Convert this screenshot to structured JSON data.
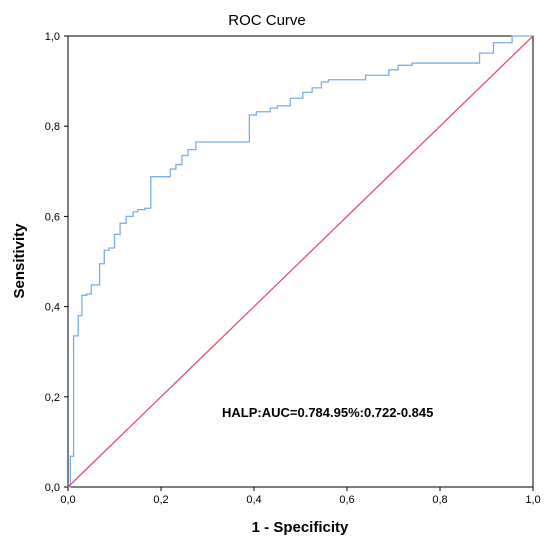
{
  "chart_data": {
    "type": "line",
    "title": "ROC Curve",
    "xlabel": "1 - Specificity",
    "ylabel": "Sensitivity",
    "xlim": [
      0,
      1
    ],
    "ylim": [
      0,
      1
    ],
    "xticks": [
      "0,0",
      "0,2",
      "0,4",
      "0,6",
      "0,8",
      "1,0"
    ],
    "yticks": [
      "0,0",
      "0,2",
      "0,4",
      "0,6",
      "0,8",
      "1,0"
    ],
    "grid": false,
    "legend": "none",
    "annotation": "HALP:AUC=0.784.95%:0.722-0.845",
    "series": [
      {
        "color": "#7aaee8",
        "x": [
          0,
          0.005,
          0.005,
          0.012,
          0.012,
          0.022,
          0.022,
          0.03,
          0.03,
          0.04,
          0.04,
          0.05,
          0.05,
          0.068,
          0.068,
          0.078,
          0.078,
          0.088,
          0.088,
          0.1,
          0.1,
          0.112,
          0.112,
          0.125,
          0.125,
          0.14,
          0.14,
          0.15,
          0.15,
          0.165,
          0.165,
          0.178,
          0.178,
          0.22,
          0.22,
          0.232,
          0.232,
          0.245,
          0.245,
          0.258,
          0.258,
          0.275,
          0.275,
          0.39,
          0.39,
          0.405,
          0.405,
          0.435,
          0.435,
          0.45,
          0.45,
          0.478,
          0.478,
          0.505,
          0.505,
          0.525,
          0.525,
          0.545,
          0.545,
          0.56,
          0.56,
          0.64,
          0.64,
          0.69,
          0.69,
          0.71,
          0.71,
          0.74,
          0.74,
          0.885,
          0.885,
          0.915,
          0.915,
          0.955,
          0.955,
          1.0
        ],
        "y": [
          0,
          0,
          0.068,
          0.068,
          0.335,
          0.335,
          0.38,
          0.38,
          0.425,
          0.425,
          0.428,
          0.428,
          0.448,
          0.448,
          0.495,
          0.495,
          0.525,
          0.525,
          0.53,
          0.53,
          0.56,
          0.56,
          0.585,
          0.585,
          0.6,
          0.6,
          0.61,
          0.61,
          0.615,
          0.615,
          0.618,
          0.618,
          0.688,
          0.688,
          0.705,
          0.705,
          0.715,
          0.715,
          0.735,
          0.735,
          0.748,
          0.748,
          0.765,
          0.765,
          0.825,
          0.825,
          0.832,
          0.832,
          0.84,
          0.84,
          0.845,
          0.845,
          0.862,
          0.862,
          0.875,
          0.875,
          0.885,
          0.885,
          0.898,
          0.898,
          0.903,
          0.903,
          0.913,
          0.913,
          0.925,
          0.925,
          0.935,
          0.935,
          0.94,
          0.94,
          0.962,
          0.962,
          0.985,
          0.985,
          1.0,
          1.0
        ]
      },
      {
        "color": "#e0506e",
        "x": [
          0,
          1
        ],
        "y": [
          0,
          1
        ]
      }
    ]
  }
}
